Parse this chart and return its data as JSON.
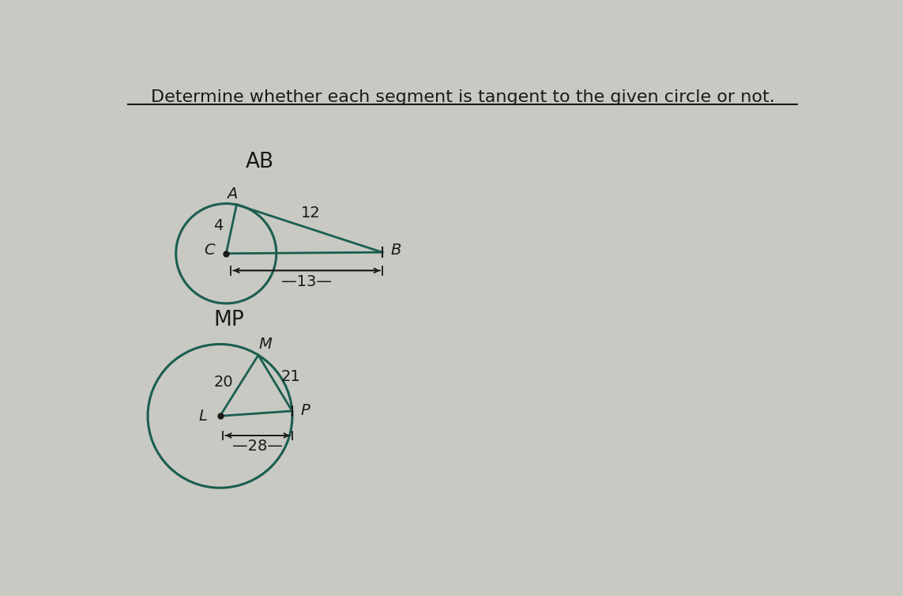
{
  "bg_color": "#c8c9c2",
  "title": "Determine whether each segment is tangent to the given circle or not.",
  "title_fontsize": 16,
  "title_color": "#1a1a1a",
  "circle_color": "#1b5e50",
  "line_color": "#1a1a1a",
  "diagram1": {
    "label": "AB",
    "label_fontsize": 19,
    "radius_label": "4",
    "seg_AB_label": "12",
    "seg_CB_label": "13"
  },
  "diagram2": {
    "label": "MP",
    "label_fontsize": 19,
    "seg_LM_label": "20",
    "seg_MP_label": "21",
    "seg_LP_label": "28"
  }
}
